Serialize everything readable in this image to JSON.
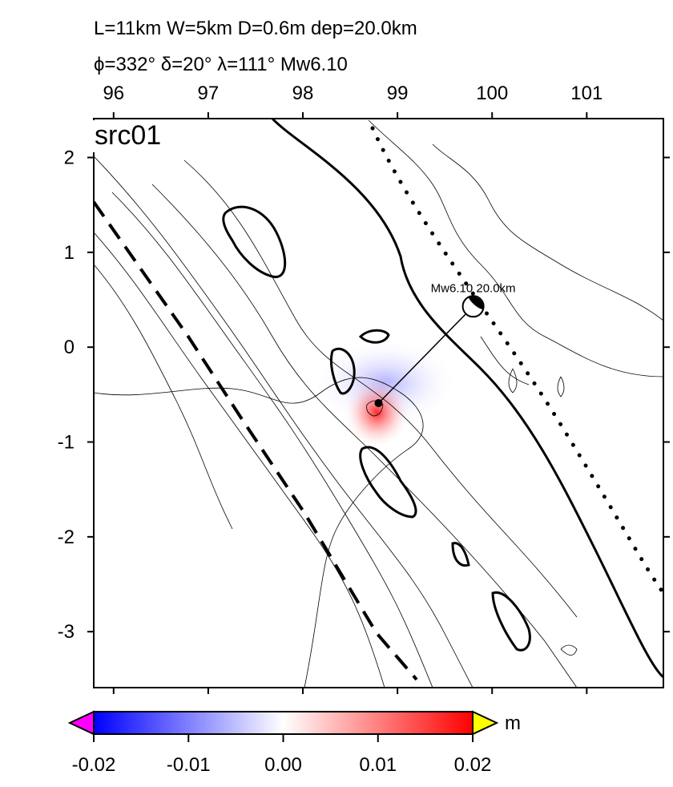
{
  "header": {
    "line1": "L=11km W=5km D=0.6m dep=20.0km",
    "line2": "ϕ=332° δ=20° λ=111° Mw6.10"
  },
  "map": {
    "label": "src01",
    "xlim": [
      95.79,
      101.81
    ],
    "ylim": [
      -3.59,
      2.41
    ],
    "xticks": [
      96,
      97,
      98,
      99,
      100,
      101
    ],
    "yticks": [
      2,
      1,
      0,
      -1,
      -2,
      -3
    ],
    "source": {
      "lon": 98.8,
      "lat": -0.59
    },
    "event": {
      "label": "Mw6.10  20.0km",
      "lon": 99.8,
      "lat": 0.43
    }
  },
  "colorbar": {
    "lim": [
      -0.02,
      0.02
    ],
    "ticks": [
      -0.02,
      -0.01,
      {
        "value": 0,
        "label": "0.00"
      },
      0.01,
      0.02
    ],
    "unit": "m"
  }
}
